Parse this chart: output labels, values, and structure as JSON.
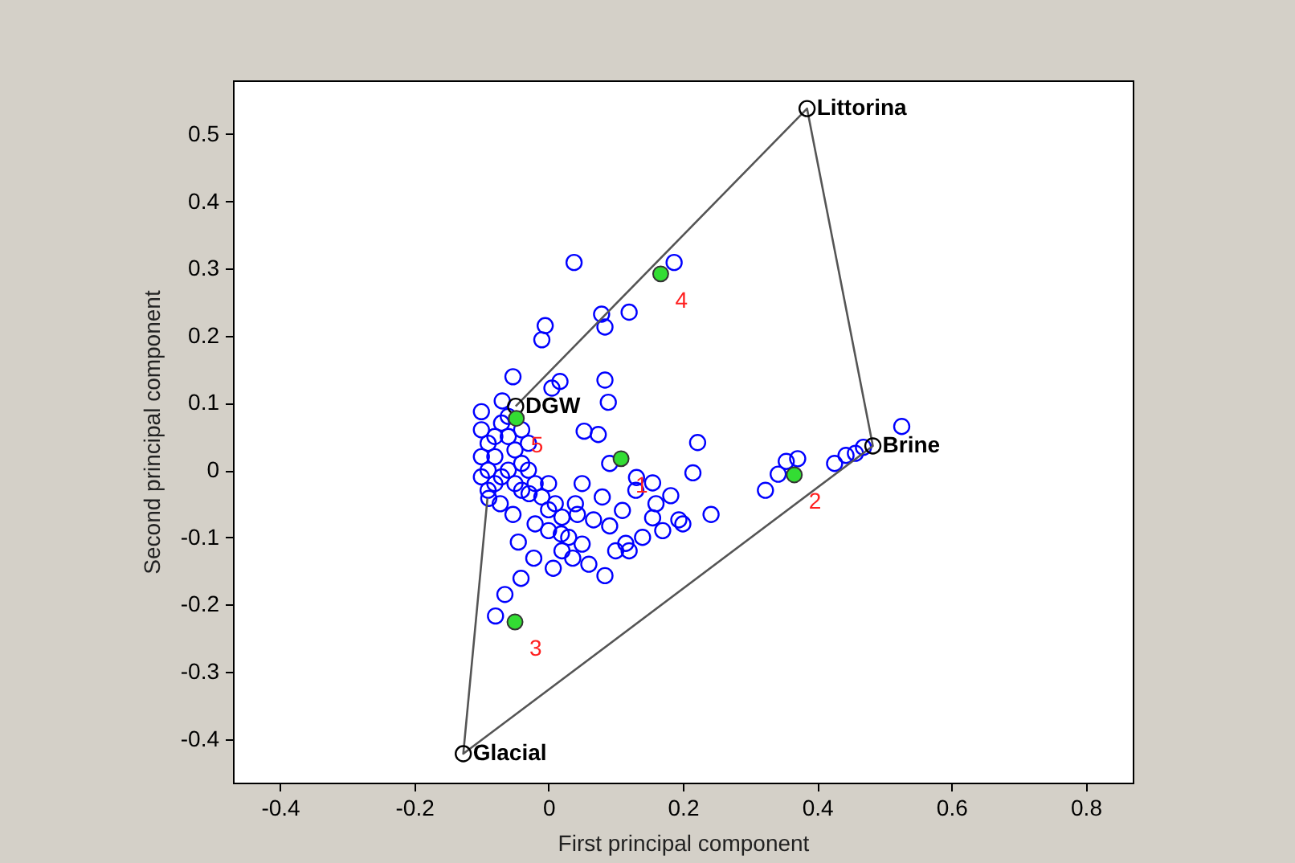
{
  "chart_data": {
    "type": "scatter",
    "xlabel": "First principal component",
    "ylabel": "Second principal component",
    "xlim": [
      -0.47,
      0.87
    ],
    "ylim": [
      -0.465,
      0.58
    ],
    "xticks": [
      -0.4,
      -0.2,
      0,
      0.2,
      0.4,
      0.6,
      0.8
    ],
    "yticks": [
      -0.4,
      -0.3,
      -0.2,
      -0.1,
      0,
      0.1,
      0.2,
      0.3,
      0.4,
      0.5
    ],
    "annotations": [
      {
        "text": "1",
        "x": 0.108,
        "y": 0.017
      },
      {
        "text": "2",
        "x": 0.366,
        "y": -0.007
      },
      {
        "text": "3",
        "x": -0.05,
        "y": -0.226
      },
      {
        "text": "4",
        "x": 0.167,
        "y": 0.292
      },
      {
        "text": "5",
        "x": -0.048,
        "y": 0.077
      }
    ],
    "series": [
      {
        "marker": "circle",
        "color": "#0000ff",
        "x": [
          0.038,
          0.187,
          0.079,
          0.084,
          0.12,
          -0.005,
          -0.01,
          -0.053,
          0.017,
          0.005,
          0.084,
          0.089,
          -0.1,
          -0.069,
          0.053,
          0.074,
          0.222,
          0.091,
          0.215,
          0.131,
          0.155,
          0.182,
          0.242,
          0.194,
          0.155,
          0.115,
          0.084,
          -0.022,
          -0.045,
          0.007,
          0.036,
          0.019,
          0.043,
          0.067,
          0.091,
          0,
          -0.029,
          -0.053,
          -0.072,
          -0.089,
          -0.041,
          -0.065,
          -0.079,
          0.323,
          0.342,
          0.354,
          0.371,
          0.426,
          0.443,
          0.457,
          0.469,
          0.526,
          -0.1,
          -0.09,
          -0.08,
          -0.09,
          -0.08,
          -0.07,
          -0.06,
          -0.05,
          -0.04,
          -0.06,
          -0.05,
          -0.07,
          -0.04,
          -0.03,
          -0.03,
          -0.02,
          -0.01,
          -0.08,
          -0.1,
          -0.1,
          -0.09,
          -0.06,
          -0.04,
          0,
          0.01,
          0.02,
          0.03,
          0,
          0.02,
          0.05,
          0.06,
          -0.02,
          0.04,
          0.1,
          0.12,
          0.14,
          0.17,
          0.2,
          0.11,
          0.08,
          0.05,
          0.13,
          0.16
        ],
        "values": [
          0.309,
          0.309,
          0.232,
          0.213,
          0.235,
          0.215,
          0.194,
          0.139,
          0.132,
          0.122,
          0.134,
          0.101,
          0.087,
          0.103,
          0.058,
          0.053,
          0.041,
          0.01,
          -0.004,
          -0.011,
          -0.019,
          -0.038,
          -0.066,
          -0.074,
          -0.071,
          -0.109,
          -0.157,
          -0.131,
          -0.107,
          -0.146,
          -0.131,
          -0.095,
          -0.066,
          -0.074,
          -0.083,
          -0.059,
          -0.035,
          -0.066,
          -0.05,
          -0.042,
          -0.161,
          -0.185,
          -0.217,
          -0.03,
          -0.006,
          0.013,
          0.017,
          0.01,
          0.022,
          0.025,
          0.034,
          0.065,
          0.06,
          0.04,
          0.02,
          0,
          -0.02,
          0.07,
          0.05,
          0.03,
          0.01,
          0,
          -0.02,
          -0.01,
          -0.03,
          0.04,
          0,
          -0.02,
          -0.04,
          0.05,
          0.02,
          -0.01,
          -0.03,
          0.08,
          0.06,
          -0.02,
          -0.05,
          -0.07,
          -0.1,
          -0.09,
          -0.12,
          -0.11,
          -0.14,
          -0.08,
          -0.05,
          -0.12,
          -0.12,
          -0.1,
          -0.09,
          -0.08,
          -0.06,
          -0.04,
          -0.02,
          -0.03,
          -0.05
        ]
      },
      {
        "type": "line",
        "marker": "none",
        "line_style": "solid",
        "color": "#555555",
        "x": [
          -0.091,
          -0.127,
          0.483,
          0.385,
          -0.049
        ],
        "values": [
          -0.042,
          -0.422,
          0.036,
          0.538,
          0.095
        ]
      },
      {
        "marker": "circle",
        "color": "#000000",
        "x": [
          -0.127,
          0.385,
          0.483,
          -0.049
        ],
        "values": [
          -0.422,
          0.538,
          0.036,
          0.095
        ],
        "value_labels": [
          "Glacial",
          "Littorina",
          "Brine",
          "DGW"
        ]
      },
      {
        "marker": "circle",
        "color": "#33dd33",
        "x": [
          0.108,
          0.366,
          -0.05,
          0.167,
          -0.048
        ],
        "values": [
          0.017,
          -0.007,
          -0.226,
          0.292,
          0.077
        ]
      }
    ]
  }
}
